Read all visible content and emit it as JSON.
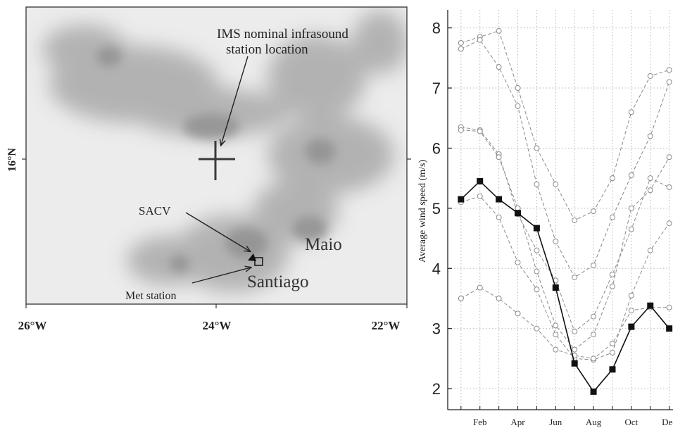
{
  "map": {
    "annotations": {
      "ims_line1": "IMS nominal infrasound",
      "ims_line2": "station location",
      "sacv": "SACV",
      "met_station": "Met station",
      "maio": "Maio",
      "santiago": "Santiago"
    },
    "lat_label": "16°N",
    "lon_labels": [
      "26°W",
      "24°W",
      "22°W"
    ],
    "colors": {
      "terrain_light": "#ebebeb",
      "terrain_dark": "#9a9a9a",
      "frame": "#333333"
    }
  },
  "chart_data": {
    "type": "line",
    "ylabel": "Average wind speed (m/s)",
    "xlabel": "",
    "x_tick_labels": [
      "Feb",
      "Apr",
      "Jun",
      "Aug",
      "Oct",
      "Dec"
    ],
    "y_tick_labels": [
      "2",
      "3",
      "4",
      "5",
      "6",
      "7",
      "8"
    ],
    "ylim": [
      1.65,
      8.3
    ],
    "xlim": [
      0.3,
      12.05
    ],
    "grid": true,
    "months": [
      1,
      2,
      3,
      4,
      5,
      6,
      7,
      8,
      9,
      10,
      11,
      12
    ],
    "series": [
      {
        "style": "bold-square",
        "color": "#111111",
        "values": [
          5.15,
          5.45,
          5.15,
          4.92,
          4.67,
          3.68,
          2.42,
          1.95,
          2.32,
          3.03,
          3.38,
          3.0
        ]
      },
      {
        "style": "light-circle",
        "color": "#8a8a8a",
        "values": [
          7.75,
          7.85,
          7.95,
          7.0,
          6.0,
          5.4,
          4.8,
          4.95,
          5.5,
          6.6,
          7.2,
          7.3
        ]
      },
      {
        "style": "light-circle",
        "color": "#8a8a8a",
        "values": [
          7.65,
          7.8,
          7.35,
          6.7,
          5.4,
          4.45,
          3.85,
          4.05,
          4.85,
          5.55,
          6.2,
          7.1
        ]
      },
      {
        "style": "light-circle",
        "color": "#8a8a8a",
        "values": [
          6.35,
          6.3,
          5.9,
          4.9,
          4.3,
          3.8,
          2.95,
          3.2,
          3.9,
          4.65,
          5.5,
          5.35
        ]
      },
      {
        "style": "light-circle",
        "color": "#8a8a8a",
        "values": [
          6.3,
          6.28,
          5.85,
          5.0,
          3.95,
          3.05,
          2.65,
          2.9,
          3.7,
          5.0,
          5.3,
          5.85
        ]
      },
      {
        "style": "light-circle",
        "color": "#8a8a8a",
        "values": [
          5.1,
          5.2,
          4.85,
          4.1,
          3.65,
          2.9,
          2.5,
          2.48,
          2.6,
          3.55,
          4.3,
          4.75
        ]
      },
      {
        "style": "light-circle",
        "color": "#8a8a8a",
        "values": [
          3.5,
          3.68,
          3.5,
          3.25,
          3.0,
          2.65,
          2.55,
          2.5,
          2.75,
          3.3,
          3.35,
          3.35
        ]
      }
    ]
  }
}
